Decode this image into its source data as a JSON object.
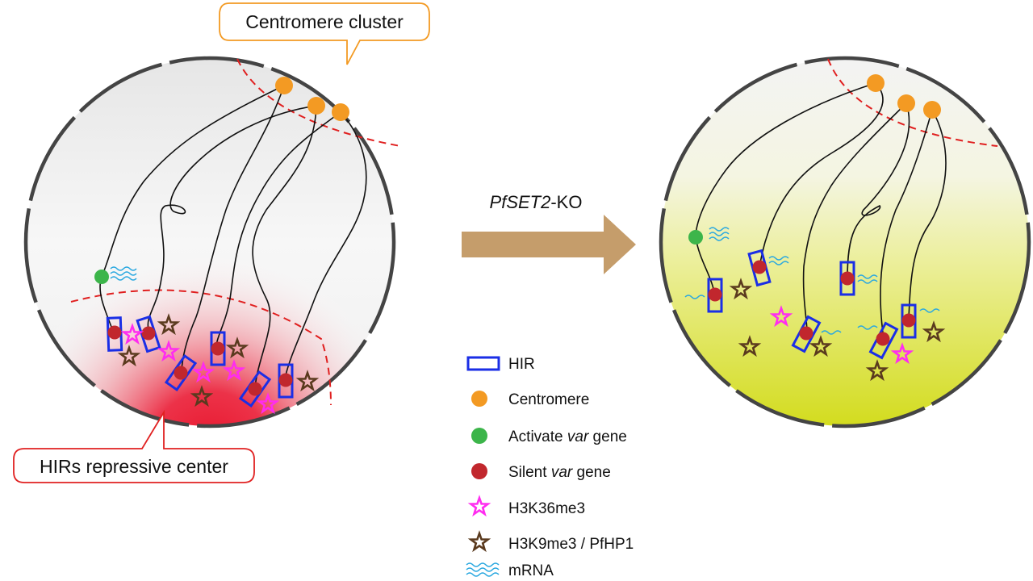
{
  "callouts": {
    "top": "Centromere cluster",
    "bottom": "HIRs repressive center"
  },
  "arrow": {
    "italic": "PfSET2",
    "suffix": "-KO",
    "color": "#c59d6b"
  },
  "legend": {
    "hir": "HIR",
    "centromere": "Centromere",
    "active_pre": "Activate ",
    "active_it": "var",
    "active_post": " gene",
    "silent_pre": "Silent ",
    "silent_it": "var",
    "silent_post": " gene",
    "h3k36": "H3K36me3",
    "h3k9": "H3K9me3 / PfHP1",
    "mrna": "mRNA"
  },
  "colors": {
    "centromere": "#f39a23",
    "active_gene": "#3cb54a",
    "silent_gene": "#c1272d",
    "hir": "#1a2ee6",
    "h3k36me3": "#ff2cf0",
    "h3k9me3": "#5a3a1e",
    "mrna": "#2aa8e0",
    "repressive_center": "#e8142a",
    "ko_nucleus": "#d4dc1e",
    "envelope": "#444444",
    "boundary": "#e02020"
  }
}
